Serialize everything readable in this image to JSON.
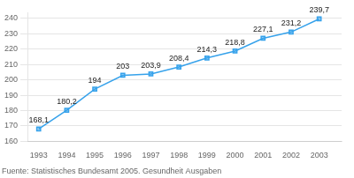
{
  "chart_data": {
    "type": "line",
    "x": [
      1993,
      1994,
      1995,
      1996,
      1997,
      1998,
      1999,
      2000,
      2001,
      2002,
      2003
    ],
    "values": [
      168.1,
      180.2,
      194.0,
      203.0,
      203.9,
      208.4,
      214.3,
      218.8,
      227.1,
      231.2,
      239.7
    ],
    "value_labels": [
      "168,1",
      "180,2",
      "194",
      "203",
      "203,9",
      "208,4",
      "214,3",
      "218,8",
      "227,1",
      "231,2",
      "239,7"
    ],
    "data_labels": true,
    "xlim": [
      1992.6,
      2003.8
    ],
    "xticks": [
      1993,
      1994,
      1995,
      1996,
      1997,
      1998,
      1999,
      2000,
      2001,
      2002,
      2003
    ],
    "ylim": [
      160,
      244
    ],
    "yticks": [
      160,
      170,
      180,
      190,
      200,
      210,
      220,
      230,
      240
    ],
    "grid": "y",
    "marker": "square",
    "footnote": "Fuente: Statistisches Bundesamt 2005. Gesundheit Ausgaben"
  }
}
